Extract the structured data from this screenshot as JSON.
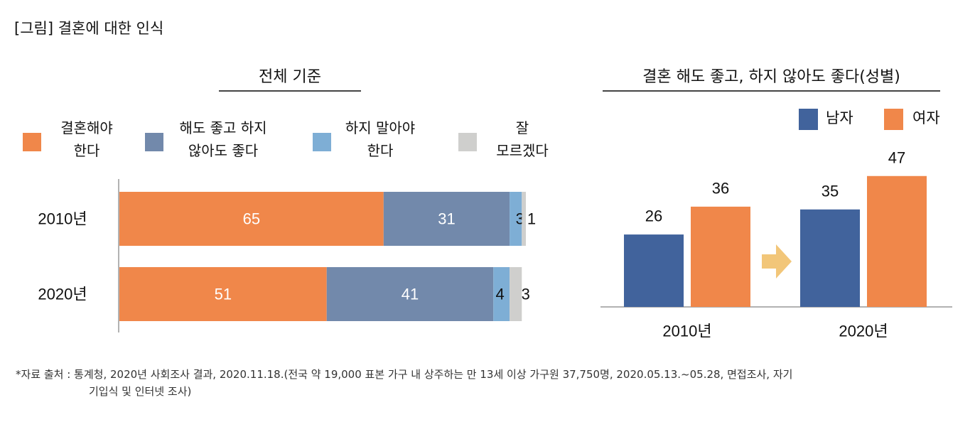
{
  "figure_title": "[그림] 결혼에 대한 인식",
  "colors": {
    "must_marry": "#f0874a",
    "either": "#7289ab",
    "must_not": "#7eaed5",
    "dont_know": "#cfcfcd",
    "male": "#41639c",
    "female": "#f0874a",
    "arrow": "#f2c679"
  },
  "chart_data": [
    {
      "type": "bar",
      "orientation": "horizontal",
      "stacked": true,
      "title": "전체 기준",
      "categories": [
        "2010년",
        "2020년"
      ],
      "series": [
        {
          "name": "결혼해야 한다",
          "values": [
            65,
            51
          ]
        },
        {
          "name": "해도 좋고 하지 않아도 좋다",
          "values": [
            31,
            41
          ]
        },
        {
          "name": "하지 말아야 한다",
          "values": [
            3,
            4
          ]
        },
        {
          "name": "잘 모르겠다",
          "values": [
            1,
            3
          ]
        }
      ],
      "legend_labels": [
        "결혼해야\n한다",
        "해도 좋고 하지\n않아도 좋다",
        "하지 말아야\n한다",
        "잘\n모르겠다"
      ],
      "legend": "top"
    },
    {
      "type": "bar",
      "title": "결혼 해도 좋고, 하지 않아도 좋다(성별)",
      "categories": [
        "2010년",
        "2020년"
      ],
      "series": [
        {
          "name": "남자",
          "values": [
            26,
            35
          ]
        },
        {
          "name": "여자",
          "values": [
            36,
            47
          ]
        }
      ],
      "legend": "top-right"
    }
  ],
  "source_note": "*자료 출처 : 통계청, 2020년 사회조사 결과, 2020.11.18.(전국 약 19,000 표본 가구 내 상주하는 만 13세 이상 가구원 37,750명, 2020.05.13.~05.28, 면접조사, 자기",
  "source_note_cont": "기입식 및 인터넷 조사)"
}
